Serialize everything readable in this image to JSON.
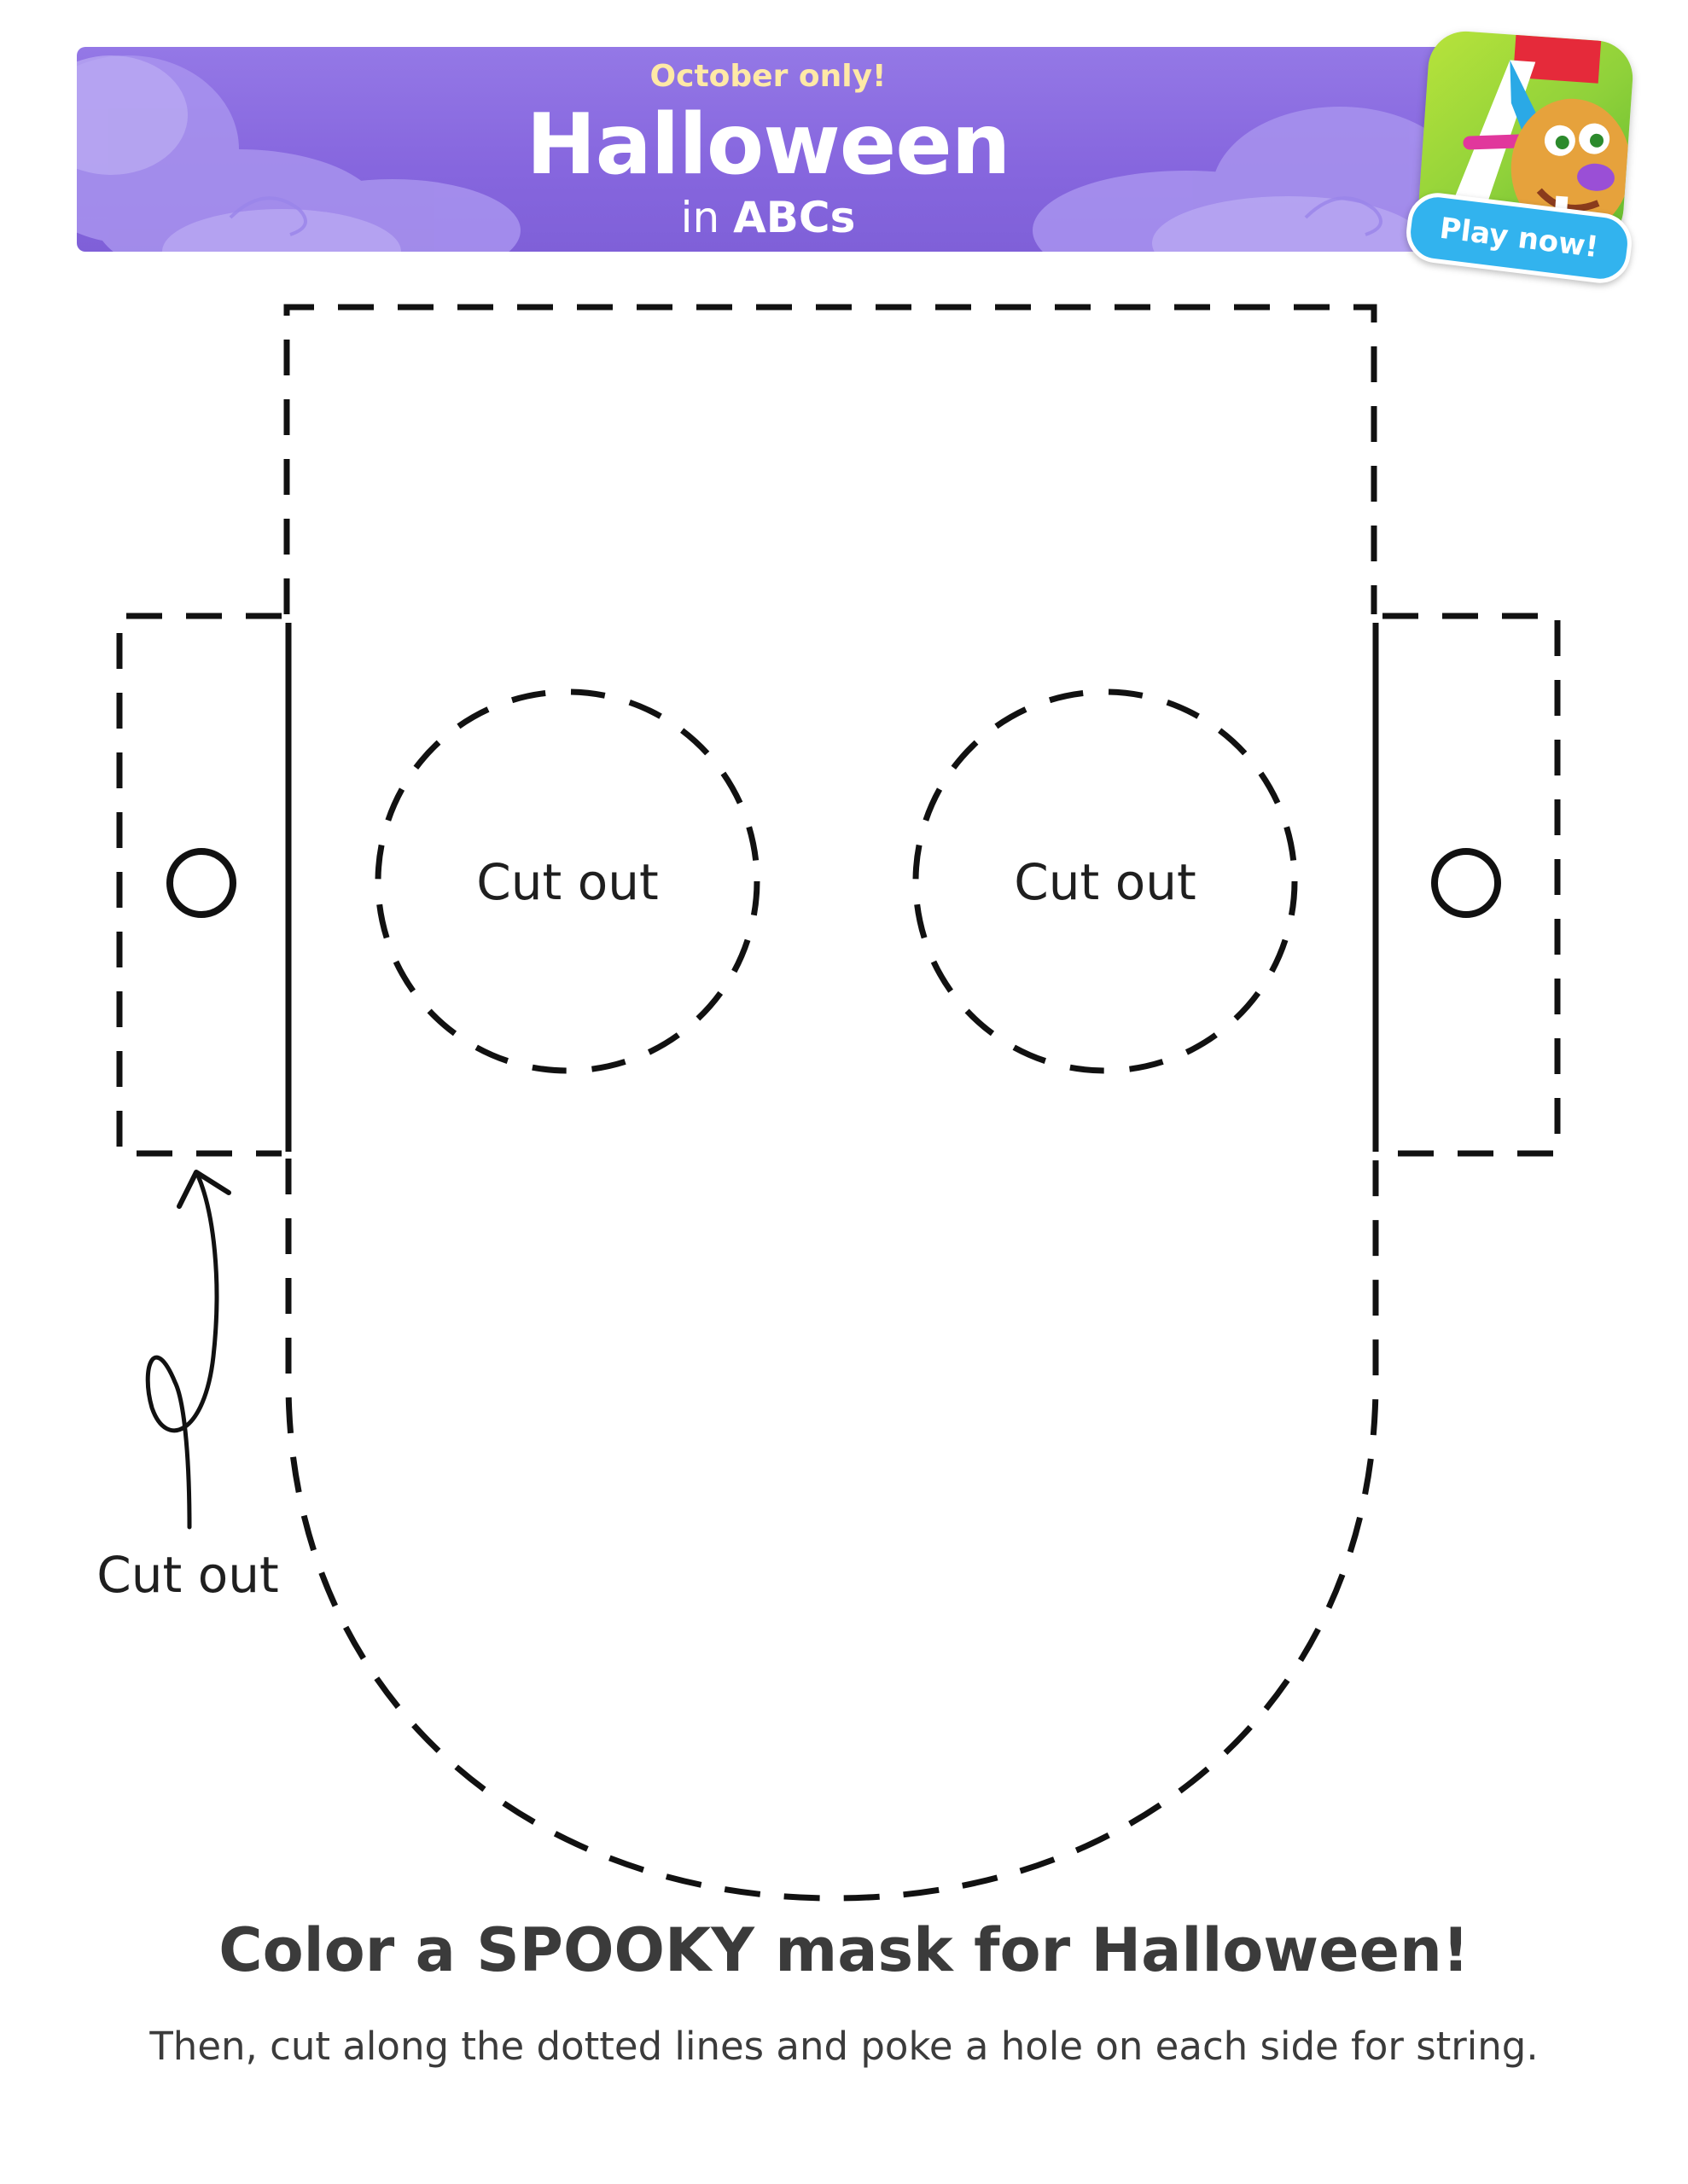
{
  "banner": {
    "tagline": "October only!",
    "title": "Halloween",
    "subtitle_prefix": "in",
    "subtitle_brand": "ABCs",
    "background_color": "#8666de",
    "tagline_color": "#ffe9a6"
  },
  "app_icon": {
    "icon": "letter-a-monster-app-icon"
  },
  "play_button": {
    "label": "Play now!",
    "color": "#32b3ee"
  },
  "mask": {
    "eye_left_label": "Cut out",
    "eye_right_label": "Cut out",
    "tab_label": "Cut out"
  },
  "heading": "Color a SPOOKY mask for Halloween!",
  "instructions": "Then, cut along the dotted lines and poke a hole on each side for string."
}
